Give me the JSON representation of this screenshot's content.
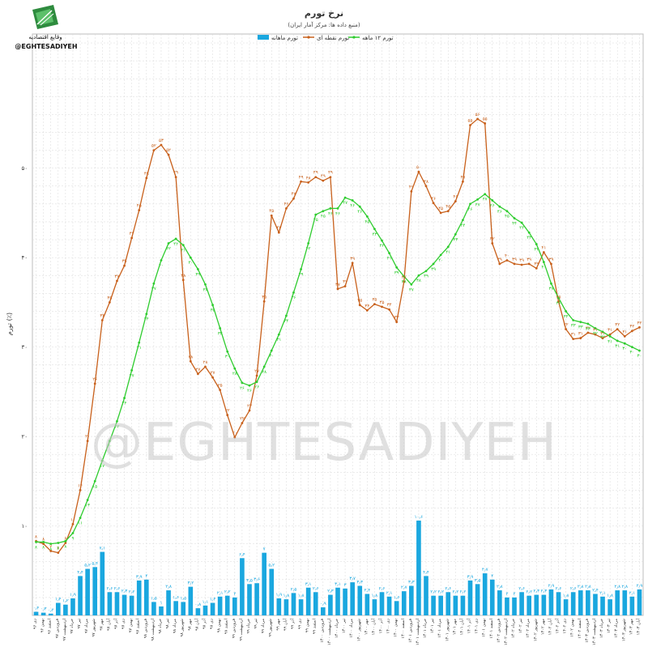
{
  "brand": {
    "name_fa": "وقایع اقتصادیه",
    "handle": "@EGHTESADIYEH",
    "watermark": "@EGHTESADIYEH"
  },
  "chart_data": {
    "type": "bar",
    "title": "نرخ تورم",
    "subtitle": "(منبع داده ها: مرکز آمار ایران)",
    "ylabel": "تورم (٪)",
    "ylim": [
      0,
      65
    ],
    "yticks": [
      {
        "v": 10,
        "label": "۱۰"
      },
      {
        "v": 20,
        "label": "۲۰"
      },
      {
        "v": 30,
        "label": "۳۰"
      },
      {
        "v": 40,
        "label": "۴۰"
      },
      {
        "v": 50,
        "label": "۵۰"
      }
    ],
    "grid": true,
    "legend_position": "top-center",
    "colors": {
      "monthly": "#1aa7df",
      "point": "#c8601b",
      "annual": "#2ecc2e",
      "grid": "#d9d9d9"
    },
    "x_labels": [
      "دی ۹۶",
      "بهمن ۹۶",
      "اسفند ۹۶",
      "فروردین ۹۷",
      "اردیبهشت ۹۷",
      "خرداد ۹۷",
      "تیر ۹۷",
      "مرداد ۹۷",
      "شهریور ۹۷",
      "مهر ۹۷",
      "آبان ۹۷",
      "آذر ۹۷",
      "دی ۹۷",
      "بهمن ۹۷",
      "اسفند ۹۷",
      "فروردین ۹۸",
      "اردیبهشت ۹۸",
      "خرداد ۹۸",
      "تیر ۹۸",
      "مرداد ۹۸",
      "شهریور ۹۸",
      "مهر ۹۸",
      "آبان ۹۸",
      "آذر ۹۸",
      "دی ۹۸",
      "بهمن ۹۸",
      "اسفند ۹۸",
      "فروردین ۹۹",
      "اردیبهشت ۹۹",
      "خرداد ۹۹",
      "تیر ۹۹",
      "مرداد ۹۹",
      "شهریور ۹۹",
      "مهر ۹۹",
      "آبان ۹۹",
      "آذر ۹۹",
      "دی ۹۹",
      "بهمن ۹۹",
      "اسفند ۹۹",
      "فروردین ۱۴۰۰",
      "اردیبهشت ۱۴۰۰",
      "خرداد ۱۴۰۰",
      "تیر ۱۴۰۰",
      "مرداد ۱۴۰۰",
      "شهریور ۱۴۰۰",
      "مهر ۱۴۰۰",
      "آبان ۱۴۰۰",
      "آذر ۱۴۰۰",
      "دی ۱۴۰۰",
      "بهمن ۱۴۰۰",
      "اسفند ۱۴۰۰",
      "فروردین ۱۴۰۱",
      "اردیبهشت ۱۴۰۱",
      "خرداد ۱۴۰۱",
      "تیر ۱۴۰۱",
      "مرداد ۱۴۰۱",
      "شهریور ۱۴۰۱",
      "مهر ۱۴۰۱",
      "آبان ۱۴۰۱",
      "آذر ۱۴۰۱",
      "دی ۱۴۰۱",
      "بهمن ۱۴۰۱",
      "اسفند ۱۴۰۱",
      "فروردین ۱۴۰۲",
      "اردیبهشت ۱۴۰۲",
      "خرداد ۱۴۰۲",
      "تیر ۱۴۰۲",
      "مرداد ۱۴۰۲",
      "شهریور ۱۴۰۲",
      "مهر ۱۴۰۲",
      "آبان ۱۴۰۲",
      "آذر ۱۴۰۲",
      "دی ۱۴۰۲",
      "بهمن ۱۴۰۲",
      "اسفند ۱۴۰۲",
      "فروردین ۱۴۰۳",
      "اردیبهشت ۱۴۰۳",
      "خرداد ۱۴۰۳",
      "تیر ۱۴۰۳",
      "مرداد ۱۴۰۳",
      "شهریور ۱۴۰۳",
      "مهر ۱۴۰۳",
      "آبان ۱۴۰۳"
    ],
    "series": [
      {
        "name": "تورم ماهانه",
        "kind": "bar",
        "values": [
          0.4,
          0.3,
          0.2,
          1.4,
          1.2,
          1.9,
          4.4,
          5.2,
          5.4,
          7.1,
          2.6,
          2.6,
          2.3,
          2.2,
          3.9,
          4.0,
          1.5,
          1.0,
          2.8,
          1.6,
          1.5,
          3.2,
          0.8,
          1.1,
          1.4,
          2.1,
          2.2,
          2.0,
          6.4,
          3.5,
          3.6,
          7.0,
          5.2,
          1.9,
          1.8,
          2.5,
          1.8,
          3.1,
          2.6,
          0.9,
          2.3,
          3.1,
          3.0,
          3.7,
          3.3,
          2.4,
          1.8,
          2.6,
          2.1,
          1.6,
          2.7,
          3.3,
          10.6,
          4.4,
          2.2,
          2.2,
          2.6,
          2.2,
          2.2,
          3.9,
          3.5,
          4.7,
          4.0,
          2.8,
          2.0,
          2.0,
          2.6,
          2.2,
          2.3,
          2.3,
          2.9,
          2.6,
          1.8,
          2.6,
          2.8,
          2.8,
          2.4,
          2.1,
          1.8,
          2.8,
          2.8,
          2.1,
          2.9
        ]
      },
      {
        "name": "تورم نقطه ای",
        "kind": "line",
        "values": [
          8.3,
          8.0,
          7.2,
          7.0,
          8.1,
          10.2,
          14.0,
          19.5,
          25.9,
          33.0,
          35.0,
          37.4,
          39.1,
          42.2,
          45.3,
          48.9,
          52.0,
          52.6,
          51.5,
          49.0,
          37.5,
          28.4,
          27.0,
          27.8,
          26.6,
          25.2,
          22.4,
          19.9,
          21.5,
          22.9,
          26.8,
          35.1,
          44.7,
          42.8,
          45.5,
          46.6,
          48.5,
          48.4,
          49.0,
          48.6,
          49.0,
          36.5,
          36.8,
          39.4,
          34.7,
          34.1,
          34.8,
          34.5,
          34.2,
          32.8,
          37.3,
          47.4,
          49.6,
          48.0,
          46.1,
          45.0,
          45.2,
          46.3,
          48.5,
          54.8,
          55.5,
          55.0,
          41.6,
          39.3,
          39.7,
          39.3,
          39.2,
          39.3,
          38.8,
          40.6,
          39.3,
          35.1,
          32.0,
          30.9,
          31.0,
          31.6,
          31.4,
          31.0,
          31.4,
          32.0,
          31.2,
          31.8,
          32.2
        ]
      },
      {
        "name": "تورم ۱۲ ماهه",
        "kind": "line",
        "values": [
          8.2,
          8.2,
          8.0,
          8.1,
          8.3,
          9.2,
          10.9,
          12.9,
          15.0,
          17.3,
          19.5,
          21.7,
          24.3,
          27.4,
          30.5,
          33.7,
          37.1,
          39.7,
          41.6,
          42.1,
          41.4,
          40.0,
          38.7,
          37.0,
          34.7,
          32.1,
          29.5,
          27.6,
          26.0,
          25.7,
          26.1,
          27.8,
          29.6,
          31.4,
          33.5,
          36.1,
          38.7,
          41.6,
          44.8,
          45.2,
          45.5,
          45.5,
          46.7,
          46.4,
          45.7,
          44.6,
          43.2,
          41.9,
          40.5,
          38.9,
          37.9,
          37.0,
          38.0,
          38.5,
          39.3,
          40.3,
          41.2,
          42.6,
          44.2,
          46.0,
          46.5,
          47.1,
          46.4,
          45.7,
          45.2,
          44.4,
          43.9,
          42.8,
          41.5,
          39.5,
          37.1,
          35.5,
          34.0,
          33.0,
          32.8,
          32.6,
          32.1,
          31.7,
          31.2,
          30.7,
          30.4,
          30.0,
          29.6
        ]
      }
    ]
  }
}
